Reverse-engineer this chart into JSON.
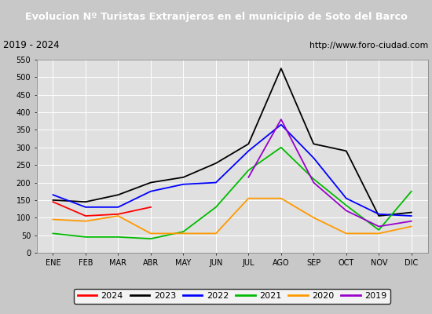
{
  "title": "Evolucion Nº Turistas Extranjeros en el municipio de Soto del Barco",
  "subtitle_left": "2019 - 2024",
  "subtitle_right": "http://www.foro-ciudad.com",
  "title_bgcolor": "#4472c4",
  "title_color": "white",
  "months": [
    "ENE",
    "FEB",
    "MAR",
    "ABR",
    "MAY",
    "JUN",
    "JUL",
    "AGO",
    "SEP",
    "OCT",
    "NOV",
    "DIC"
  ],
  "ylim": [
    0,
    550
  ],
  "yticks": [
    0,
    50,
    100,
    150,
    200,
    250,
    300,
    350,
    400,
    450,
    500,
    550
  ],
  "series": {
    "2024": {
      "color": "#ff0000",
      "values": [
        145,
        105,
        110,
        130,
        null,
        null,
        null,
        null,
        null,
        null,
        null,
        null
      ]
    },
    "2023": {
      "color": "#000000",
      "values": [
        150,
        145,
        165,
        200,
        215,
        255,
        310,
        525,
        310,
        290,
        105,
        115
      ]
    },
    "2022": {
      "color": "#0000ff",
      "values": [
        165,
        130,
        130,
        175,
        195,
        200,
        290,
        365,
        270,
        155,
        110,
        105
      ]
    },
    "2021": {
      "color": "#00bb00",
      "values": [
        55,
        45,
        45,
        40,
        60,
        130,
        235,
        300,
        210,
        135,
        65,
        175
      ]
    },
    "2020": {
      "color": "#ff9900",
      "values": [
        95,
        90,
        105,
        55,
        55,
        55,
        155,
        155,
        100,
        55,
        55,
        75
      ]
    },
    "2019": {
      "color": "#9900cc",
      "values": [
        null,
        null,
        null,
        null,
        null,
        null,
        215,
        380,
        200,
        120,
        75,
        90
      ]
    }
  },
  "legend_order": [
    "2024",
    "2023",
    "2022",
    "2021",
    "2020",
    "2019"
  ],
  "plot_bg": "#e0e0e0",
  "fig_bg": "#c8c8c8",
  "subtitle_bg": "#ffffff",
  "grid_color": "#ffffff"
}
